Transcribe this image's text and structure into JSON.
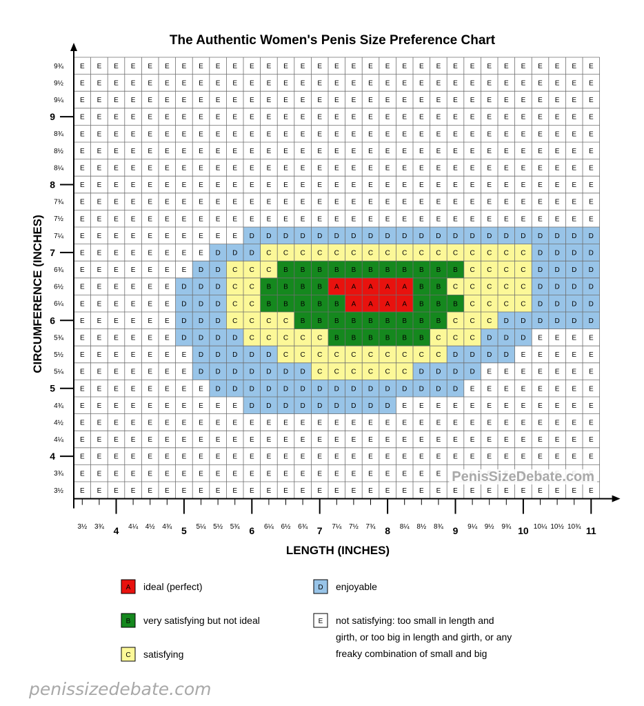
{
  "chart_data": {
    "type": "heatmap",
    "title": "The Authentic Women's Penis Size Preference Chart",
    "xlabel": "LENGTH (INCHES)",
    "ylabel": "CIRCUMFERENCE (INCHES)",
    "x_ticks": [
      "3½",
      "3¾",
      "4",
      "4¼",
      "4½",
      "4¾",
      "5",
      "5¼",
      "5½",
      "5¾",
      "6",
      "6¼",
      "6½",
      "6¾",
      "7",
      "7¼",
      "7½",
      "7¾",
      "8",
      "8¼",
      "8½",
      "8¾",
      "9",
      "9¼",
      "9½",
      "9¾",
      "10",
      "10¼",
      "10½",
      "10¾",
      "11"
    ],
    "y_ticks": [
      "9¾",
      "9½",
      "9¼",
      "9",
      "8¾",
      "8½",
      "8¼",
      "8",
      "7¾",
      "7½",
      "7¼",
      "7",
      "6¾",
      "6½",
      "6¼",
      "6",
      "5¾",
      "5½",
      "5¼",
      "5",
      "4¾",
      "4½",
      "4¼",
      "4",
      "3¾",
      "3½"
    ],
    "bold_ticks": [
      "4",
      "5",
      "6",
      "7",
      "8",
      "9",
      "10",
      "11"
    ],
    "grid": [
      "EEEEEEEEEEEEEEEEEEEEEEEEEEEEEEE",
      "EEEEEEEEEEEEEEEEEEEEEEEEEEEEEEE",
      "EEEEEEEEEEEEEEEEEEEEEEEEEEEEEEE",
      "EEEEEEEEEEEEEEEEEEEEEEEEEEEEEEE",
      "EEEEEEEEEEEEEEEEEEEEEEEEEEEEEEE",
      "EEEEEEEEEEEEEEEEEEEEEEEEEEEEEEE",
      "EEEEEEEEEEEEEEEEEEEEEEEEEEEEEEE",
      "EEEEEEEEEEEEEEEEEEEEEEEEEEEEEEE",
      "EEEEEEEEEEEEEEEEEEEEEEEEEEEEEEE",
      "EEEEEEEEEEEEEEEEEEEEEEEEEEEEEEE",
      "EEEEEEEEEEDDDDDDDDDDDDDDDDDDDDD",
      "EEEEEEEEDDDCCCCCCCCCCCCCCCCDDDD",
      "EEEEEEEDDCCCBBBBBBBBBBBCCCCDDDD",
      "EEEEEEDDDCCBBBBAAAAABBCCCCCDDDD",
      "EEEEEEDDDCCBBBBBAAAABBBCCCCDDDD",
      "EEEEEEDDDCCCCBBBBBBBBBCCCDDDDDD",
      "EEEEEEDDDDCCCCCBBBBBBCCCDDDEEEE",
      "EEEEEEEDDDDDCCCCCCCCCCDDDDEEEEE",
      "EEEEEEEDDDDDDDCCCCCCDDDDEEEEEEE",
      "EEEEEEEEDDDDDDDDDDDDDDDEEEEEEEE",
      "EEEEEEEEEEDDDDDDDDDEEEEEEEEEEEE",
      "EEEEEEEEEEEEEEEEEEEEEEEEEEEEEEE",
      "EEEEEEEEEEEEEEEEEEEEEEEEEEEEEEE",
      "EEEEEEEEEEEEEEEEEEEEEEEEEEEEEEE",
      "EEEEEEEEEEEEEEEEEEEEEEEEEEEEEEE",
      "EEEEEEEEEEEEEEEEEEEEEEEEEEEEEEE"
    ],
    "colors": {
      "A": "#e8120e",
      "B": "#15881e",
      "C": "#fcf898",
      "D": "#98c4e8",
      "E": "#ffffff"
    },
    "legend": [
      {
        "key": "A",
        "label": [
          "ideal (perfect)"
        ]
      },
      {
        "key": "B",
        "label": [
          "very satisfying but not ideal"
        ]
      },
      {
        "key": "C",
        "label": [
          "satisfying"
        ]
      },
      {
        "key": "D",
        "label": [
          "enjoyable"
        ]
      },
      {
        "key": "E",
        "label": [
          "not satisfying: too small in length and",
          "girth, or too big in length and girth, or any",
          "freaky combination of small and big"
        ]
      }
    ],
    "watermark": "PenisSizeDebate.com",
    "legend_position": "bottom",
    "grid_lines": true
  },
  "footer": {
    "source_text": "penissizedebate.com"
  }
}
